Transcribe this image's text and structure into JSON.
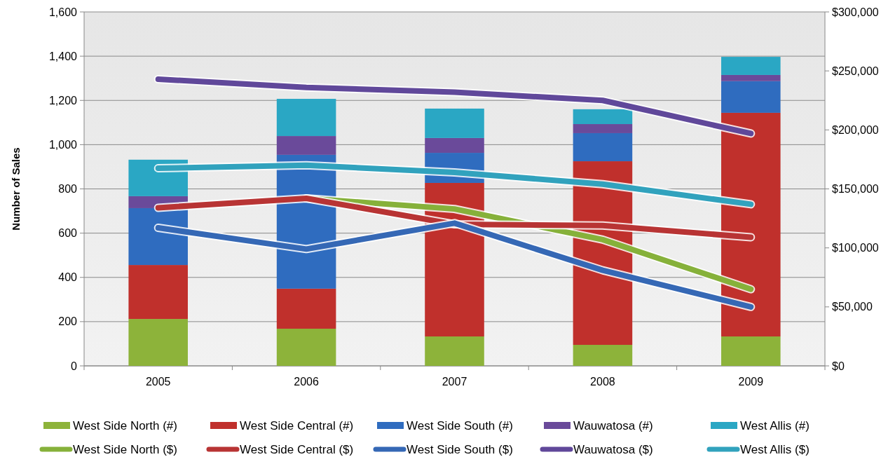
{
  "chart_data": {
    "type": "bar",
    "stacked": true,
    "categories": [
      "2005",
      "2006",
      "2007",
      "2008",
      "2009"
    ],
    "ylabel": "Number of Sales",
    "ylim": [
      0,
      1600
    ],
    "yticks": [
      {
        "value": 0,
        "label": "0"
      },
      {
        "value": 200,
        "label": "200"
      },
      {
        "value": 400,
        "label": "400"
      },
      {
        "value": 600,
        "label": "600"
      },
      {
        "value": 800,
        "label": "800"
      },
      {
        "value": 1000,
        "label": "1,000"
      },
      {
        "value": 1200,
        "label": "1,200"
      },
      {
        "value": 1400,
        "label": "1,400"
      },
      {
        "value": 1600,
        "label": "1,600"
      }
    ],
    "y2lim": [
      0,
      300000
    ],
    "y2ticks": [
      {
        "value": 0,
        "label": "$0"
      },
      {
        "value": 50000,
        "label": "$50,000"
      },
      {
        "value": 100000,
        "label": "$100,000"
      },
      {
        "value": 150000,
        "label": "$150,000"
      },
      {
        "value": 200000,
        "label": "$200,000"
      },
      {
        "value": 250000,
        "label": "$250,000"
      },
      {
        "value": 300000,
        "label": "$300,000"
      }
    ],
    "grid": "y",
    "legend": "bottom",
    "series": [
      {
        "name": "West Side North (#)",
        "color": "#8db33a",
        "values": [
          212,
          168,
          133,
          95,
          133
        ]
      },
      {
        "name": "West Side Central (#)",
        "color": "#c0302c",
        "values": [
          244,
          181,
          694,
          830,
          1011
        ]
      },
      {
        "name": "West Side South (#)",
        "color": "#2f6cbf",
        "values": [
          257,
          605,
          136,
          127,
          143
        ]
      },
      {
        "name": "Wauwatosa (#)",
        "color": "#6a4a9a",
        "values": [
          54,
          85,
          67,
          41,
          28
        ]
      },
      {
        "name": "West Allis (#)",
        "color": "#2aa7c4",
        "values": [
          165,
          168,
          133,
          67,
          82
        ]
      },
      {
        "name": "West Side North ($)",
        "type": "line",
        "axis": "y2",
        "color": "#86b13a",
        "values": [
          null,
          142000,
          133000,
          107000,
          65000
        ]
      },
      {
        "name": "West Side Central ($)",
        "type": "line",
        "axis": "y2",
        "color": "#b83434",
        "values": [
          134000,
          142000,
          120000,
          119000,
          109000
        ]
      },
      {
        "name": "West Side South ($)",
        "type": "line",
        "axis": "y2",
        "color": "#3568b5",
        "values": [
          117000,
          99000,
          121000,
          81000,
          50000
        ]
      },
      {
        "name": "Wauwatosa ($)",
        "type": "line",
        "axis": "y2",
        "color": "#60489a",
        "values": [
          243000,
          236000,
          232000,
          225000,
          197000
        ]
      },
      {
        "name": "West Allis ($)",
        "type": "line",
        "axis": "y2",
        "color": "#31a2bd",
        "values": [
          167500,
          170000,
          164000,
          154000,
          137000
        ]
      }
    ]
  }
}
